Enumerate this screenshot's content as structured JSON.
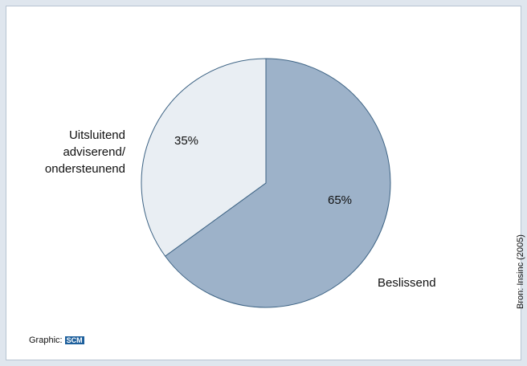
{
  "chart_data": {
    "type": "pie",
    "categories": [
      "Beslissend",
      "Uitsluitend\nadviserend/\nondersteunend"
    ],
    "values": [
      65,
      35
    ],
    "value_labels": [
      "65%",
      "35%"
    ],
    "colors": [
      "#9db2c9",
      "#e9eef3"
    ],
    "source": "Bron: Insinc (2005)",
    "credit": "Graphic:",
    "logo": "SCM"
  }
}
